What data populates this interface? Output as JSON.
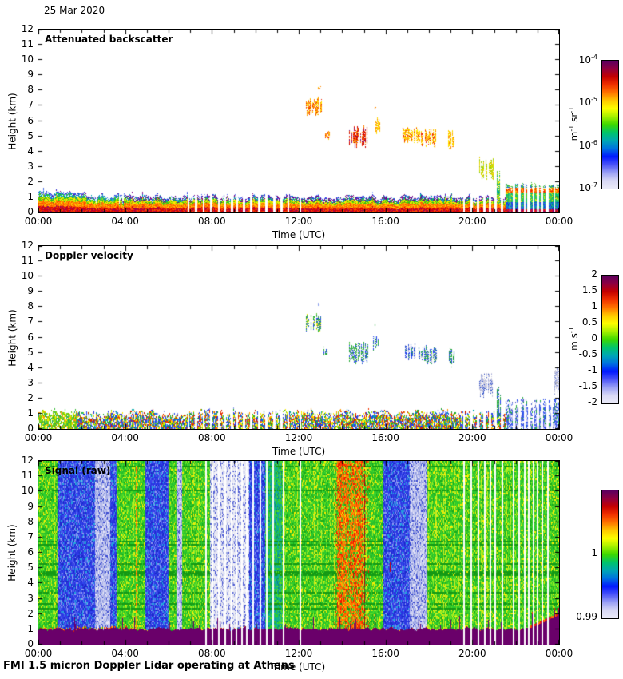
{
  "header": {
    "date": "25 Mar 2020"
  },
  "footer": {
    "caption": "FMI 1.5 micron Doppler Lidar operating at Athens"
  },
  "axes": {
    "xlabel": "Time (UTC)",
    "ylabel": "Height (km)",
    "xticks": [
      "00:00",
      "04:00",
      "08:00",
      "12:00",
      "16:00",
      "20:00",
      "00:00"
    ],
    "yticks": [
      "0",
      "1",
      "2",
      "3",
      "4",
      "5",
      "6",
      "7",
      "8",
      "9",
      "10",
      "11",
      "12"
    ],
    "x_hours": 24,
    "y_km": 12
  },
  "colormap_stops": [
    "#5a0060",
    "#8e0040",
    "#c40000",
    "#f03000",
    "#ff7300",
    "#ffc800",
    "#fdff00",
    "#a6f000",
    "#3cd800",
    "#00c46a",
    "#00a7b4",
    "#0072e0",
    "#0018ff",
    "#4b54f8",
    "#9aa0f5",
    "#d8d8f5",
    "#eaeaf8"
  ],
  "chart_data": [
    {
      "id": "attenuated_backscatter",
      "type": "heatmap",
      "title": "Attenuated backscatter",
      "xlabel": "Time (UTC)",
      "ylabel": "Height (km)",
      "xlim_hours": [
        0,
        24
      ],
      "ylim_km": [
        0,
        12
      ],
      "colorbar": {
        "scale": "log",
        "unit_segments": [
          {
            "t": "m"
          },
          {
            "sup": "-1"
          },
          {
            "t": " sr"
          },
          {
            "sup": "-1"
          }
        ],
        "ticks": [
          {
            "segs": [
              {
                "t": "10"
              },
              {
                "sup": "-4"
              }
            ],
            "pos": 0
          },
          {
            "segs": [
              {
                "t": "10"
              },
              {
                "sup": "-5"
              }
            ],
            "pos": 0.333
          },
          {
            "segs": [
              {
                "t": "10"
              },
              {
                "sup": "-6"
              }
            ],
            "pos": 0.667
          },
          {
            "segs": [
              {
                "t": "10"
              },
              {
                "sup": "-7"
              }
            ],
            "pos": 1
          }
        ]
      },
      "features": {
        "seed": 11,
        "boundary_layer": {
          "top_km_base": 1.05,
          "top_km_early": 1.3,
          "early_end_t": 2.2,
          "top_km_late": 1.85,
          "late_start_t": 21.5,
          "strata": [
            {
              "f": 0.32,
              "colors": [
                "#d80000",
                "#f03000",
                "#ff5500",
                "#b8003c",
                "#900060"
              ]
            },
            {
              "f": 0.58,
              "colors": [
                "#ff7300",
                "#ffa000",
                "#ffd000",
                "#ff4400"
              ]
            },
            {
              "f": 0.78,
              "colors": [
                "#ffe800",
                "#b8e800",
                "#58cc00",
                "#2abb22"
              ]
            },
            {
              "f": 0.92,
              "colors": [
                "#00bb66",
                "#00a0c0",
                "#2255ee",
                "#58cc00"
              ]
            },
            {
              "f": 1.01,
              "colors": [
                "#2233dd",
                "#5566ee",
                "#00aaaa",
                "#7a0080",
                "#88aaff"
              ]
            }
          ],
          "purple_speckle": {
            "t0": 3.8,
            "t1": 21.5,
            "color": "#7a0080"
          },
          "late_strata": [
            {
              "km": 0.25,
              "colors": [
                "#cc0033",
                "#7a0080",
                "#ee3300"
              ]
            },
            {
              "km": 0.7,
              "colors": [
                "#2244ee",
                "#00aaaa",
                "#1133cc",
                "#22bb66"
              ]
            },
            {
              "km": 1.35,
              "colors": [
                "#22bb66",
                "#00bb88",
                "#58cc22",
                "#ffe800"
              ]
            },
            {
              "km": 1.65,
              "colors": [
                "#ff7300",
                "#ee2200",
                "#ffcc00"
              ]
            },
            {
              "km": 2.4,
              "colors": [
                "#44bb44",
                "#2255dd",
                "#88dd44",
                "#00aaaa"
              ]
            }
          ]
        },
        "clouds": [
          {
            "t0": 12.35,
            "t1": 13.05,
            "km0": 6.3,
            "km1": 7.6,
            "colors": [
              "#ff8800",
              "#ffcc00",
              "#ee2200",
              "#ffee00"
            ]
          },
          {
            "t0": 12.9,
            "t1": 13.0,
            "km0": 8.0,
            "km1": 8.3,
            "colors": [
              "#ff8800",
              "#ffcc00"
            ]
          },
          {
            "t0": 13.15,
            "t1": 13.45,
            "km0": 4.6,
            "km1": 5.4,
            "colors": [
              "#ff8800",
              "#ee2200",
              "#ffcc00"
            ]
          },
          {
            "t0": 14.35,
            "t1": 15.2,
            "km0": 4.2,
            "km1": 5.7,
            "colors": [
              "#cc0000",
              "#ff6600",
              "#7a0080",
              "#ff3300",
              "#ffaa00"
            ]
          },
          {
            "t0": 15.45,
            "t1": 15.75,
            "km0": 5.1,
            "km1": 6.2,
            "colors": [
              "#ffcc00",
              "#ffee00",
              "#ff8800"
            ]
          },
          {
            "t0": 15.5,
            "t1": 15.56,
            "km0": 6.7,
            "km1": 6.95,
            "colors": [
              "#ff8800"
            ]
          },
          {
            "t0": 16.8,
            "t1": 17.5,
            "km0": 4.5,
            "km1": 5.6,
            "colors": [
              "#ffcc00",
              "#ff8800",
              "#ffee00",
              "#ee2200"
            ]
          },
          {
            "t0": 17.55,
            "t1": 18.35,
            "km0": 4.2,
            "km1": 5.5,
            "colors": [
              "#ffcc00",
              "#ff8800",
              "#ee2200",
              "#ffee00"
            ]
          },
          {
            "t0": 18.9,
            "t1": 19.15,
            "km0": 3.9,
            "km1": 5.4,
            "colors": [
              "#ffcc00",
              "#ff8800",
              "#ffee00"
            ]
          },
          {
            "t0": 20.35,
            "t1": 20.95,
            "km0": 2.0,
            "km1": 3.7,
            "colors": [
              "#ccdd00",
              "#88cc22",
              "#ffcc00"
            ]
          },
          {
            "t0": 21.15,
            "t1": 21.3,
            "km0": 0.0,
            "km1": 2.9,
            "colors": [
              "#66cc22",
              "#ffee00",
              "#00aa88"
            ]
          }
        ],
        "gaps_a": [
          6.9,
          7.25,
          7.6,
          7.95,
          8.3,
          8.6,
          8.9,
          9.15,
          9.45,
          9.8,
          10.15,
          10.5,
          10.85,
          11.2,
          11.5,
          12.05
        ],
        "gaps_b": [
          19.6,
          19.95,
          20.25,
          20.55,
          20.8,
          21.05,
          21.35,
          21.9,
          22.15,
          22.4,
          22.6,
          22.8,
          23.0,
          23.2,
          23.45
        ]
      }
    },
    {
      "id": "doppler_velocity",
      "type": "heatmap",
      "title": "Doppler velocity",
      "xlabel": "Time (UTC)",
      "ylabel": "Height (km)",
      "xlim_hours": [
        0,
        24
      ],
      "ylim_km": [
        0,
        12
      ],
      "colorbar": {
        "scale": "linear",
        "unit_segments": [
          {
            "t": "m s"
          },
          {
            "sup": "-1"
          }
        ],
        "ticks": [
          {
            "segs": [
              {
                "t": "2"
              }
            ],
            "pos": 0
          },
          {
            "segs": [
              {
                "t": "1.5"
              }
            ],
            "pos": 0.125
          },
          {
            "segs": [
              {
                "t": "1"
              }
            ],
            "pos": 0.25
          },
          {
            "segs": [
              {
                "t": "0.5"
              }
            ],
            "pos": 0.375
          },
          {
            "segs": [
              {
                "t": "0"
              }
            ],
            "pos": 0.5
          },
          {
            "segs": [
              {
                "t": "-0.5"
              }
            ],
            "pos": 0.625
          },
          {
            "segs": [
              {
                "t": "-1"
              }
            ],
            "pos": 0.75
          },
          {
            "segs": [
              {
                "t": "-1.5"
              }
            ],
            "pos": 0.875
          },
          {
            "segs": [
              {
                "t": "-2"
              }
            ],
            "pos": 1
          }
        ]
      },
      "features": {
        "seed": 22,
        "boundary_layer": {
          "top_km_base": 1.1,
          "top_km_early": 1.25,
          "early_end_t": 1.8,
          "top_km_late": 1.85,
          "late_start_t": 21.5,
          "early_colors": [
            "#66cc11",
            "#99dd00",
            "#ffee00",
            "#33bb33",
            "#22aa66",
            "#ff9900"
          ],
          "mid_colors": [
            "#2244ee",
            "#22aa22",
            "#ffee00",
            "#ee3300",
            "#ff9900",
            "#00aaaa",
            "#99dd00",
            "#cc2200",
            "#8899ee"
          ],
          "late_colors": [
            "#3355ee",
            "#8899ee",
            "#bbbbee",
            "#5566cc",
            "#22aa44",
            "#d8d8ee"
          ]
        },
        "clouds": [
          {
            "t0": 12.35,
            "t1": 13.05,
            "km0": 6.3,
            "km1": 7.6,
            "colors": [
              "#22aa33",
              "#ffee00",
              "#2244ee",
              "#66cc44"
            ]
          },
          {
            "t0": 12.9,
            "t1": 13.0,
            "km0": 8.0,
            "km1": 8.3,
            "colors": [
              "#99aaee"
            ]
          },
          {
            "t0": 13.15,
            "t1": 13.45,
            "km0": 4.6,
            "km1": 5.4,
            "colors": [
              "#22aa33",
              "#2244ee"
            ]
          },
          {
            "t0": 14.35,
            "t1": 15.2,
            "km0": 4.2,
            "km1": 5.7,
            "colors": [
              "#22aa33",
              "#2244ee",
              "#66cc44",
              "#99aaee"
            ]
          },
          {
            "t0": 15.45,
            "t1": 15.75,
            "km0": 5.1,
            "km1": 6.2,
            "colors": [
              "#2244ee",
              "#22aa33"
            ]
          },
          {
            "t0": 15.5,
            "t1": 15.56,
            "km0": 6.7,
            "km1": 6.95,
            "colors": [
              "#22aa33"
            ]
          },
          {
            "t0": 16.8,
            "t1": 17.5,
            "km0": 4.5,
            "km1": 5.6,
            "colors": [
              "#2244ee",
              "#3355cc",
              "#22aa55",
              "#bbbbdd"
            ]
          },
          {
            "t0": 17.55,
            "t1": 18.35,
            "km0": 4.2,
            "km1": 5.5,
            "colors": [
              "#2244ee",
              "#22aa55",
              "#66cc44",
              "#bbbbdd"
            ]
          },
          {
            "t0": 18.9,
            "t1": 19.15,
            "km0": 3.9,
            "km1": 5.4,
            "colors": [
              "#22aa33",
              "#2244ee"
            ]
          },
          {
            "t0": 20.35,
            "t1": 20.95,
            "km0": 2.0,
            "km1": 3.7,
            "colors": [
              "#ccccdd",
              "#aab0e0",
              "#3355cc"
            ]
          },
          {
            "t0": 21.15,
            "t1": 21.3,
            "km0": 0.0,
            "km1": 2.9,
            "colors": [
              "#22aa33",
              "#2244ee"
            ]
          },
          {
            "t0": 23.8,
            "t1": 24.0,
            "km0": 2.2,
            "km1": 4.2,
            "colors": [
              "#ccccdd",
              "#8899dd"
            ]
          }
        ],
        "gaps_a": [
          6.9,
          7.25,
          7.6,
          7.95,
          8.3,
          8.6,
          8.9,
          9.15,
          9.45,
          9.8,
          10.15,
          10.5,
          10.85,
          11.2,
          11.5,
          12.05
        ],
        "gaps_b": [
          19.6,
          19.95,
          20.25,
          20.55,
          20.8,
          21.05,
          21.35,
          21.9,
          22.15,
          22.4,
          22.6,
          22.8,
          23.0,
          23.2,
          23.45
        ]
      }
    },
    {
      "id": "signal_raw",
      "type": "heatmap",
      "title": "Signal (raw)",
      "xlabel": "Time (UTC)",
      "ylabel": "Height (km)",
      "xlim_hours": [
        0,
        24
      ],
      "ylim_km": [
        0,
        12
      ],
      "colorbar": {
        "scale": "linear",
        "unit_segments": [],
        "ticks": [
          {
            "segs": [
              {
                "t": "1"
              }
            ],
            "pos": 0.5
          },
          {
            "segs": [
              {
                "t": "0.99"
              }
            ],
            "pos": 1
          }
        ]
      },
      "features": {
        "seed": 33,
        "bands": [
          {
            "t0": 0,
            "t1": 0.85,
            "type": "green"
          },
          {
            "t0": 0.85,
            "t1": 2.6,
            "type": "blue"
          },
          {
            "t0": 2.6,
            "t1": 3.3,
            "type": "lightblue"
          },
          {
            "t0": 3.3,
            "t1": 3.6,
            "type": "blue"
          },
          {
            "t0": 3.6,
            "t1": 4.9,
            "type": "green"
          },
          {
            "t0": 4.9,
            "t1": 6.0,
            "type": "blue"
          },
          {
            "t0": 6.0,
            "t1": 6.35,
            "type": "green"
          },
          {
            "t0": 6.35,
            "t1": 6.6,
            "type": "lightblue"
          },
          {
            "t0": 6.6,
            "t1": 7.9,
            "type": "green"
          },
          {
            "t0": 7.9,
            "t1": 9.7,
            "type": "white"
          },
          {
            "t0": 9.7,
            "t1": 10.45,
            "type": "blue"
          },
          {
            "t0": 10.45,
            "t1": 11.2,
            "type": "teal"
          },
          {
            "t0": 11.2,
            "t1": 13.6,
            "type": "green"
          },
          {
            "t0": 13.6,
            "t1": 15.25,
            "type": "greenred"
          },
          {
            "t0": 15.25,
            "t1": 15.9,
            "type": "green"
          },
          {
            "t0": 15.9,
            "t1": 17.1,
            "type": "blue"
          },
          {
            "t0": 17.1,
            "t1": 17.9,
            "type": "lightblue"
          },
          {
            "t0": 17.9,
            "t1": 24,
            "type": "green"
          }
        ],
        "palettes": {
          "green": [
            "#2ecc2e",
            "#29bb29",
            "#55dd22",
            "#99ee22",
            "#18a818",
            "#ffee00"
          ],
          "blue": [
            "#2935e0",
            "#3344ee",
            "#1a27c8",
            "#5566ee",
            "#8f9bf2",
            "#22aadd"
          ],
          "lightblue": [
            "#c9cdf1",
            "#aab1e9",
            "#8a97de",
            "#e9e9f8",
            "#3a49d0"
          ],
          "white": [
            "#ededf5",
            "#e2e2f2",
            "#f7f7fb",
            "#9aa5e2",
            "#4a57d2"
          ],
          "teal": [
            "#12b489",
            "#2ecc2e",
            "#10a0a8",
            "#55dd22",
            "#0b8f72"
          ],
          "streak_orange": [
            "#ff7700",
            "#ff4400",
            "#ffaa00",
            "#ee1100"
          ],
          "row_dark_green": "#149914",
          "col_bright_green": "#ccee22"
        },
        "orange_threads": [
          4.5,
          12.05
        ],
        "orange_streaks": [
          13.85,
          13.95,
          14.1,
          14.25,
          14.45,
          14.6,
          14.75,
          14.9
        ],
        "red_lines": [
          15.05
        ],
        "red_dashes": {
          "t0": 14.3,
          "t1": 18.6,
          "km0": 4.1,
          "km1": 5.2,
          "color": "#cc0000"
        },
        "purple_band": {
          "color": "#6a006a",
          "base_km": 1.0,
          "fringe_colors": [
            "#ff6600",
            "#ffcc00",
            "#dd2200",
            "#22bb22"
          ],
          "tall_start_t": 22.6,
          "tall_km": 1.9
        },
        "gaps_a": [
          7.7,
          8.0,
          8.3,
          8.6,
          8.9,
          9.1,
          9.35,
          9.6,
          9.9,
          10.2,
          10.5,
          10.8,
          11.3,
          12.05
        ],
        "gaps_b": [
          19.6,
          19.95,
          20.25,
          20.55,
          20.8,
          21.05,
          21.35,
          21.9,
          22.15,
          22.4,
          22.6,
          22.8,
          23.0,
          23.2,
          23.45
        ]
      }
    }
  ]
}
